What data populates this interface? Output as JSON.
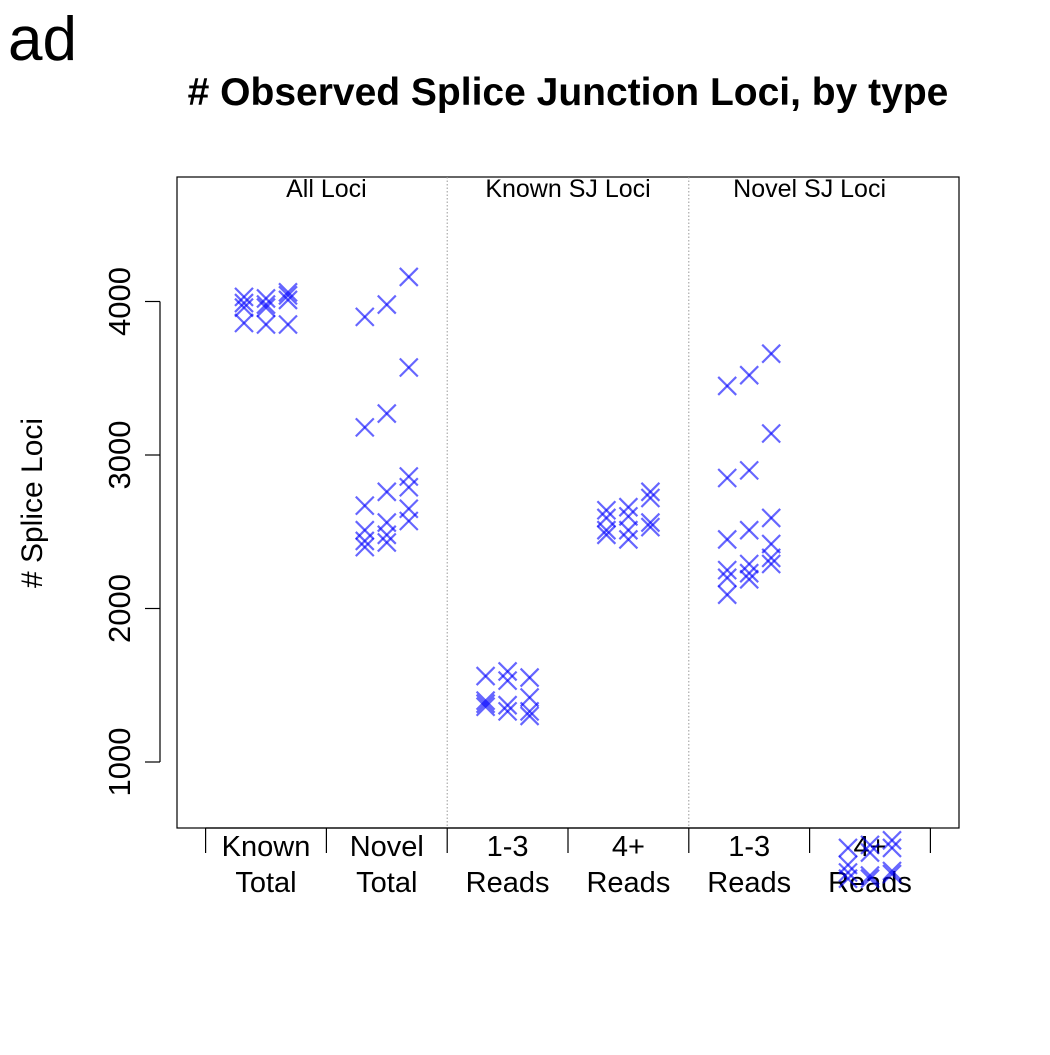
{
  "panel_label": "ad",
  "chart_data": {
    "type": "scatter",
    "title": "# Observed Splice Junction Loci, by type",
    "xlabel": "",
    "ylabel": "# Splice Loci",
    "ylim": [
      100,
      4350
    ],
    "yticks": [
      1000,
      2000,
      3000,
      4000
    ],
    "grid": false,
    "marker": "x",
    "marker_color": "#0000ff",
    "marker_opacity": 0.6,
    "separator_color": "#999999",
    "sections": [
      {
        "label": "All Loci",
        "categories": [
          0,
          1
        ]
      },
      {
        "label": "Known SJ Loci",
        "categories": [
          2,
          3
        ]
      },
      {
        "label": "Novel SJ Loci",
        "categories": [
          4,
          5
        ]
      }
    ],
    "categories": [
      {
        "line1": "Known",
        "line2": "Total"
      },
      {
        "line1": "Novel",
        "line2": "Total"
      },
      {
        "line1": "1-3",
        "line2": "Reads"
      },
      {
        "line1": "4+",
        "line2": "Reads"
      },
      {
        "line1": "1-3",
        "line2": "Reads"
      },
      {
        "line1": "4+",
        "line2": "Reads"
      }
    ],
    "points": [
      {
        "category": 0,
        "values": [
          [
            -1,
            4030
          ],
          [
            -1,
            3990
          ],
          [
            -1,
            3960
          ],
          [
            -1,
            3860
          ],
          [
            0,
            4020
          ],
          [
            0,
            3980
          ],
          [
            0,
            3960
          ],
          [
            0,
            3850
          ],
          [
            1,
            4060
          ],
          [
            1,
            4040
          ],
          [
            1,
            4010
          ],
          [
            1,
            3850
          ]
        ]
      },
      {
        "category": 1,
        "values": [
          [
            -1,
            3900
          ],
          [
            -1,
            3180
          ],
          [
            -1,
            2670
          ],
          [
            -1,
            2510
          ],
          [
            -1,
            2440
          ],
          [
            -1,
            2400
          ],
          [
            0,
            3980
          ],
          [
            0,
            3270
          ],
          [
            0,
            2760
          ],
          [
            0,
            2560
          ],
          [
            0,
            2480
          ],
          [
            0,
            2430
          ],
          [
            1,
            4160
          ],
          [
            1,
            3570
          ],
          [
            1,
            2860
          ],
          [
            1,
            2790
          ],
          [
            1,
            2650
          ],
          [
            1,
            2570
          ]
        ]
      },
      {
        "category": 2,
        "values": [
          [
            -1,
            1560
          ],
          [
            -1,
            1400
          ],
          [
            -1,
            1380
          ],
          [
            -1,
            1360
          ],
          [
            0,
            1590
          ],
          [
            0,
            1530
          ],
          [
            0,
            1370
          ],
          [
            0,
            1330
          ],
          [
            1,
            1550
          ],
          [
            1,
            1420
          ],
          [
            1,
            1330
          ],
          [
            1,
            1300
          ]
        ]
      },
      {
        "category": 3,
        "values": [
          [
            -1,
            2640
          ],
          [
            -1,
            2590
          ],
          [
            -1,
            2510
          ],
          [
            -1,
            2480
          ],
          [
            0,
            2660
          ],
          [
            0,
            2600
          ],
          [
            0,
            2510
          ],
          [
            0,
            2450
          ],
          [
            1,
            2760
          ],
          [
            1,
            2720
          ],
          [
            1,
            2560
          ],
          [
            1,
            2530
          ]
        ]
      },
      {
        "category": 4,
        "values": [
          [
            -1,
            3450
          ],
          [
            -1,
            2850
          ],
          [
            -1,
            2450
          ],
          [
            -1,
            2250
          ],
          [
            -1,
            2200
          ],
          [
            -1,
            2090
          ],
          [
            0,
            3520
          ],
          [
            0,
            2900
          ],
          [
            0,
            2510
          ],
          [
            0,
            2290
          ],
          [
            0,
            2230
          ],
          [
            0,
            2190
          ],
          [
            1,
            3660
          ],
          [
            1,
            3140
          ],
          [
            1,
            2590
          ],
          [
            1,
            2420
          ],
          [
            1,
            2330
          ],
          [
            1,
            2290
          ]
        ]
      },
      {
        "category": 5,
        "values": [
          [
            -1,
            440
          ],
          [
            -1,
            330
          ],
          [
            -1,
            280
          ],
          [
            -1,
            240
          ],
          [
            0,
            460
          ],
          [
            0,
            410
          ],
          [
            0,
            260
          ],
          [
            0,
            240
          ],
          [
            1,
            490
          ],
          [
            1,
            440
          ],
          [
            1,
            290
          ],
          [
            1,
            270
          ]
        ]
      }
    ]
  }
}
